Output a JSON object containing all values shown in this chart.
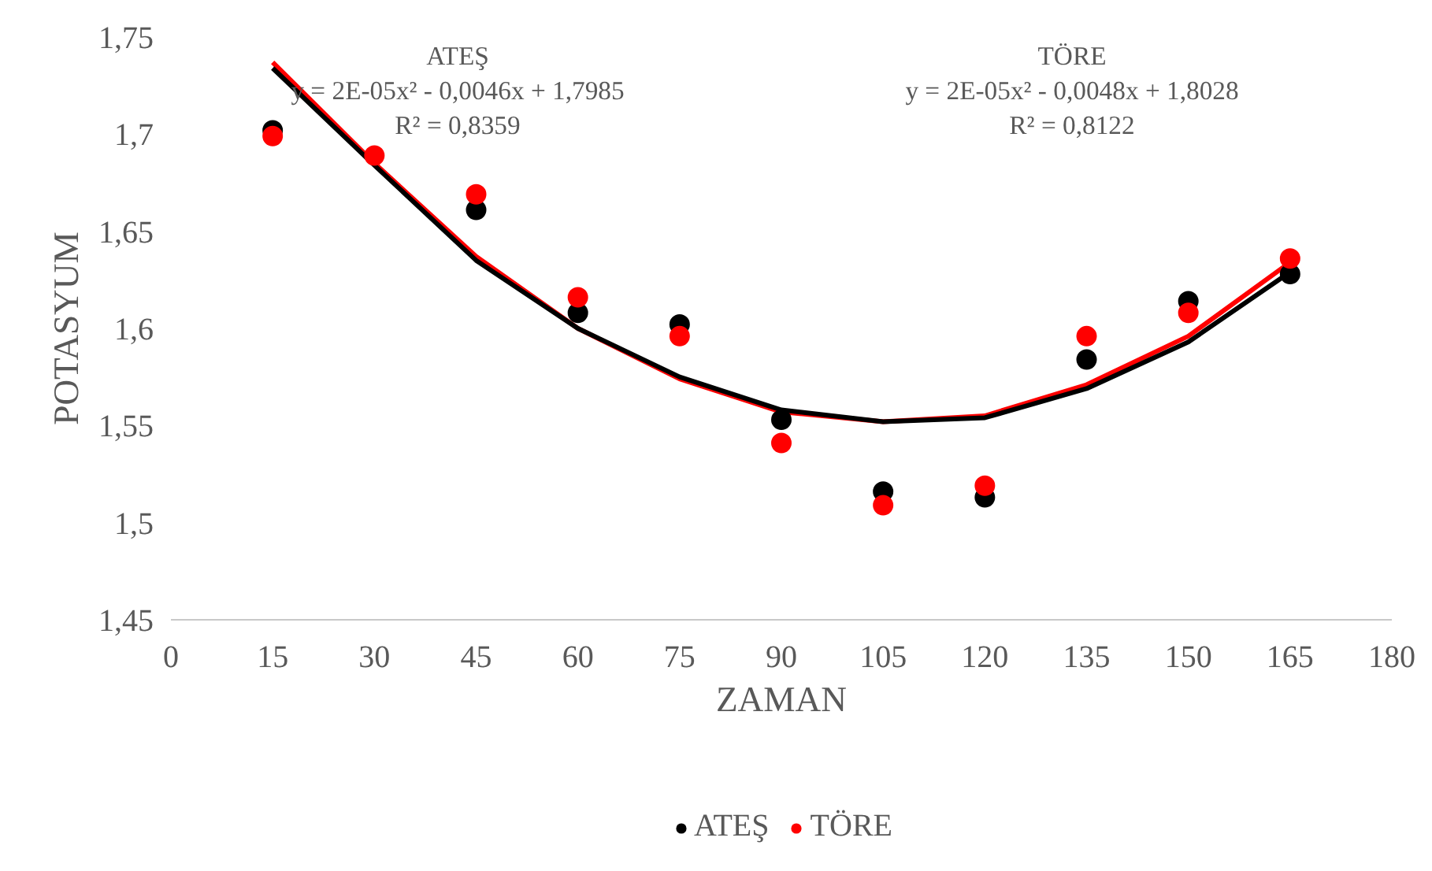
{
  "chart_data": {
    "type": "scatter",
    "xlabel": "ZAMAN",
    "ylabel": "POTASYUM",
    "x": [
      15,
      30,
      45,
      60,
      75,
      90,
      105,
      120,
      135,
      150,
      165
    ],
    "series": [
      {
        "name": "ATEŞ",
        "color": "#000000",
        "values": [
          1.702,
          null,
          1.661,
          1.608,
          1.602,
          1.553,
          1.516,
          1.513,
          1.584,
          1.614,
          1.628
        ]
      },
      {
        "name": "TÖRE",
        "color": "#ff0000",
        "values": [
          1.699,
          1.689,
          1.669,
          1.616,
          1.596,
          1.541,
          1.509,
          1.519,
          1.596,
          1.608,
          1.636
        ]
      },
      {
        "type": "line",
        "marker": "none",
        "color": "#000000",
        "x": [
          15,
          30,
          45,
          60,
          75,
          90,
          105,
          120,
          135,
          150,
          165
        ],
        "values": [
          1.734,
          1.684,
          1.635,
          1.6,
          1.575,
          1.558,
          1.552,
          1.554,
          1.569,
          1.593,
          1.629
        ]
      },
      {
        "type": "line",
        "marker": "none",
        "color": "#ff0000",
        "x": [
          15,
          30,
          45,
          60,
          75,
          90,
          105,
          120,
          135,
          150,
          165
        ],
        "values": [
          1.737,
          1.685,
          1.637,
          1.6,
          1.574,
          1.557,
          1.552,
          1.555,
          1.571,
          1.596,
          1.634
        ]
      }
    ],
    "xlim": [
      0,
      180
    ],
    "xticks": [
      0,
      15,
      30,
      45,
      60,
      75,
      90,
      105,
      120,
      135,
      150,
      165,
      180
    ],
    "ylim": [
      1.45,
      1.75
    ],
    "yticks": [
      {
        "value": 1.45,
        "label": "1,45"
      },
      {
        "value": 1.5,
        "label": "1,5"
      },
      {
        "value": 1.55,
        "label": "1,55"
      },
      {
        "value": 1.6,
        "label": "1,6"
      },
      {
        "value": 1.65,
        "label": "1,65"
      },
      {
        "value": 1.7,
        "label": "1,7"
      },
      {
        "value": 1.75,
        "label": "1,75"
      }
    ],
    "annotations": [
      "ATEŞ",
      "y = 2E-05x² - 0,0046x + 1,7985",
      "R² = 0,8359",
      "TÖRE",
      "y = 2E-05x² - 0,0048x + 1,8028",
      "R² = 0,8122"
    ],
    "marker": "circle",
    "grid": false,
    "legend": "bottom"
  }
}
